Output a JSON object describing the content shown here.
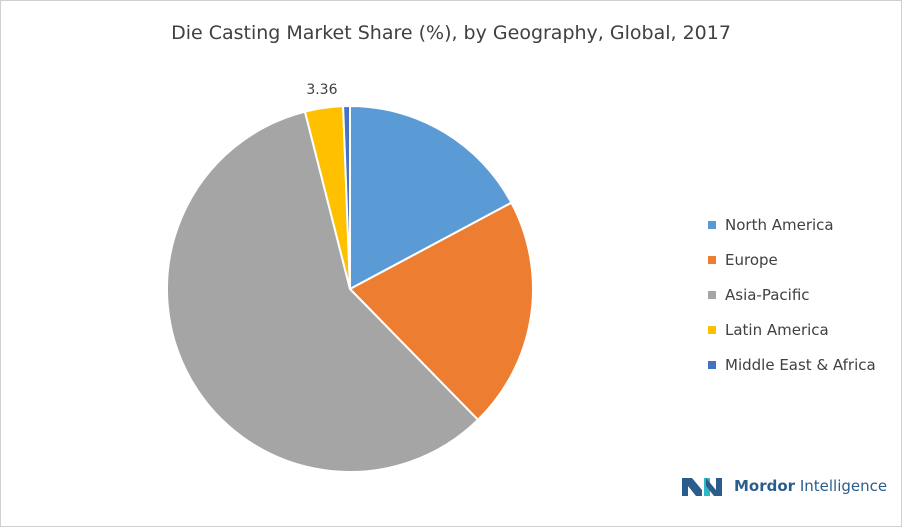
{
  "title": "Die Casting Market Share (%), by Geography, Global, 2017",
  "chart_data": {
    "type": "pie",
    "title": "Die Casting Market Share (%), by Geography, Global, 2017",
    "slices": [
      {
        "name": "North America",
        "value": 17.2,
        "color": "#5b9bd5"
      },
      {
        "name": "Europe",
        "value": 20.5,
        "color": "#ed7d31"
      },
      {
        "name": "Asia-Pacific",
        "value": 58.4,
        "color": "#a5a5a5"
      },
      {
        "name": "Latin America",
        "value": 3.36,
        "color": "#ffc000",
        "label": "3.36"
      },
      {
        "name": "Middle East & Africa",
        "value": 0.6,
        "color": "#4472c4"
      }
    ],
    "legend_position": "right"
  },
  "brand": {
    "name_part1": "Mordor",
    "name_part2": " Intelligence",
    "color": "#2b5d8c"
  }
}
